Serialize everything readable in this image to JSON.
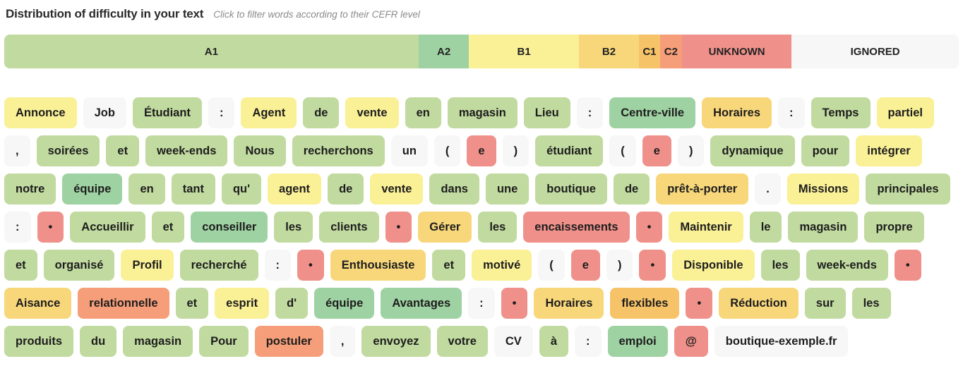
{
  "header": {
    "title": "Distribution of difficulty in your text",
    "subtitle": "Click to filter words according to their CEFR level"
  },
  "levels": {
    "A1": "#c1da9f",
    "A2": "#9fd2a2",
    "B1": "#faf096",
    "B2": "#f8d77b",
    "C1": "#f7c368",
    "C2": "#f59e79",
    "UNKNOWN": "#ef918a",
    "IGNORED": "#f7f7f7"
  },
  "distribution_bar": {
    "segments": [
      {
        "label": "A1",
        "level": "A1",
        "pct": 43.4
      },
      {
        "label": "A2",
        "level": "A2",
        "pct": 5.3
      },
      {
        "label": "B1",
        "level": "B1",
        "pct": 11.5
      },
      {
        "label": "B2",
        "level": "B2",
        "pct": 6.3
      },
      {
        "label": "C1",
        "level": "C1",
        "pct": 2.2
      },
      {
        "label": "C2",
        "level": "C2",
        "pct": 2.3
      },
      {
        "label": "UNKNOWN",
        "level": "UNKNOWN",
        "pct": 11.5
      },
      {
        "label": "IGNORED",
        "level": "IGNORED",
        "pct": 17.5
      }
    ]
  },
  "words": [
    {
      "text": "Annonce",
      "level": "B1"
    },
    {
      "text": "Job",
      "level": "IGNORED"
    },
    {
      "text": "Étudiant",
      "level": "A1"
    },
    {
      "text": ":",
      "level": "IGNORED"
    },
    {
      "text": "Agent",
      "level": "B1"
    },
    {
      "text": "de",
      "level": "A1"
    },
    {
      "text": "vente",
      "level": "B1"
    },
    {
      "text": "en",
      "level": "A1"
    },
    {
      "text": "magasin",
      "level": "A1"
    },
    {
      "text": "Lieu",
      "level": "A1"
    },
    {
      "text": ":",
      "level": "IGNORED"
    },
    {
      "text": "Centre-ville",
      "level": "A2"
    },
    {
      "text": "Horaires",
      "level": "B2"
    },
    {
      "text": ":",
      "level": "IGNORED"
    },
    {
      "text": "Temps",
      "level": "A1"
    },
    {
      "text": "partiel",
      "level": "B1"
    },
    {
      "text": ",",
      "level": "IGNORED"
    },
    {
      "text": "soirées",
      "level": "A1"
    },
    {
      "text": "et",
      "level": "A1"
    },
    {
      "text": "week-ends",
      "level": "A1"
    },
    {
      "text": "Nous",
      "level": "A1"
    },
    {
      "text": "recherchons",
      "level": "A1"
    },
    {
      "text": "un",
      "level": "IGNORED"
    },
    {
      "text": "(",
      "level": "IGNORED"
    },
    {
      "text": "e",
      "level": "UNKNOWN"
    },
    {
      "text": ")",
      "level": "IGNORED"
    },
    {
      "text": "étudiant",
      "level": "A1"
    },
    {
      "text": "(",
      "level": "IGNORED"
    },
    {
      "text": "e",
      "level": "UNKNOWN"
    },
    {
      "text": ")",
      "level": "IGNORED"
    },
    {
      "text": "dynamique",
      "level": "A1"
    },
    {
      "text": "pour",
      "level": "A1"
    },
    {
      "text": "intégrer",
      "level": "B1"
    },
    {
      "text": "notre",
      "level": "A1"
    },
    {
      "text": "équipe",
      "level": "A2"
    },
    {
      "text": "en",
      "level": "A1"
    },
    {
      "text": "tant",
      "level": "A1"
    },
    {
      "text": "qu'",
      "level": "A1"
    },
    {
      "text": "agent",
      "level": "B1"
    },
    {
      "text": "de",
      "level": "A1"
    },
    {
      "text": "vente",
      "level": "B1"
    },
    {
      "text": "dans",
      "level": "A1"
    },
    {
      "text": "une",
      "level": "A1"
    },
    {
      "text": "boutique",
      "level": "A1"
    },
    {
      "text": "de",
      "level": "A1"
    },
    {
      "text": "prêt-à-porter",
      "level": "B2"
    },
    {
      "text": ".",
      "level": "IGNORED"
    },
    {
      "text": "Missions",
      "level": "B1"
    },
    {
      "text": "principales",
      "level": "A1"
    },
    {
      "text": ":",
      "level": "IGNORED"
    },
    {
      "text": "•",
      "level": "UNKNOWN"
    },
    {
      "text": "Accueillir",
      "level": "A1"
    },
    {
      "text": "et",
      "level": "A1"
    },
    {
      "text": "conseiller",
      "level": "A2"
    },
    {
      "text": "les",
      "level": "A1"
    },
    {
      "text": "clients",
      "level": "A1"
    },
    {
      "text": "•",
      "level": "UNKNOWN"
    },
    {
      "text": "Gérer",
      "level": "B2"
    },
    {
      "text": "les",
      "level": "A1"
    },
    {
      "text": "encaissements",
      "level": "UNKNOWN"
    },
    {
      "text": "•",
      "level": "UNKNOWN"
    },
    {
      "text": "Maintenir",
      "level": "B1"
    },
    {
      "text": "le",
      "level": "A1"
    },
    {
      "text": "magasin",
      "level": "A1"
    },
    {
      "text": "propre",
      "level": "A1"
    },
    {
      "text": "et",
      "level": "A1"
    },
    {
      "text": "organisé",
      "level": "A1"
    },
    {
      "text": "Profil",
      "level": "B1"
    },
    {
      "text": "recherché",
      "level": "A1"
    },
    {
      "text": ":",
      "level": "IGNORED"
    },
    {
      "text": "•",
      "level": "UNKNOWN"
    },
    {
      "text": "Enthousiaste",
      "level": "B2"
    },
    {
      "text": "et",
      "level": "A1"
    },
    {
      "text": "motivé",
      "level": "B1"
    },
    {
      "text": "(",
      "level": "IGNORED"
    },
    {
      "text": "e",
      "level": "UNKNOWN"
    },
    {
      "text": ")",
      "level": "IGNORED"
    },
    {
      "text": "•",
      "level": "UNKNOWN"
    },
    {
      "text": "Disponible",
      "level": "B1"
    },
    {
      "text": "les",
      "level": "A1"
    },
    {
      "text": "week-ends",
      "level": "A1"
    },
    {
      "text": "•",
      "level": "UNKNOWN"
    },
    {
      "text": "Aisance",
      "level": "B2"
    },
    {
      "text": "relationnelle",
      "level": "C2"
    },
    {
      "text": "et",
      "level": "A1"
    },
    {
      "text": "esprit",
      "level": "B1"
    },
    {
      "text": "d'",
      "level": "A1"
    },
    {
      "text": "équipe",
      "level": "A2"
    },
    {
      "text": "Avantages",
      "level": "A2"
    },
    {
      "text": ":",
      "level": "IGNORED"
    },
    {
      "text": "•",
      "level": "UNKNOWN"
    },
    {
      "text": "Horaires",
      "level": "B2"
    },
    {
      "text": "flexibles",
      "level": "C1"
    },
    {
      "text": "•",
      "level": "UNKNOWN"
    },
    {
      "text": "Réduction",
      "level": "B2"
    },
    {
      "text": "sur",
      "level": "A1"
    },
    {
      "text": "les",
      "level": "A1"
    },
    {
      "text": "produits",
      "level": "A1"
    },
    {
      "text": "du",
      "level": "A1"
    },
    {
      "text": "magasin",
      "level": "A1"
    },
    {
      "text": "Pour",
      "level": "A1"
    },
    {
      "text": "postuler",
      "level": "C2"
    },
    {
      "text": ",",
      "level": "IGNORED"
    },
    {
      "text": "envoyez",
      "level": "A1"
    },
    {
      "text": "votre",
      "level": "A1"
    },
    {
      "text": "CV",
      "level": "IGNORED"
    },
    {
      "text": "à",
      "level": "A1"
    },
    {
      "text": ":",
      "level": "IGNORED"
    },
    {
      "text": "emploi",
      "level": "A2"
    },
    {
      "text": "@",
      "level": "UNKNOWN"
    },
    {
      "text": "boutique-exemple.fr",
      "level": "IGNORED"
    }
  ]
}
